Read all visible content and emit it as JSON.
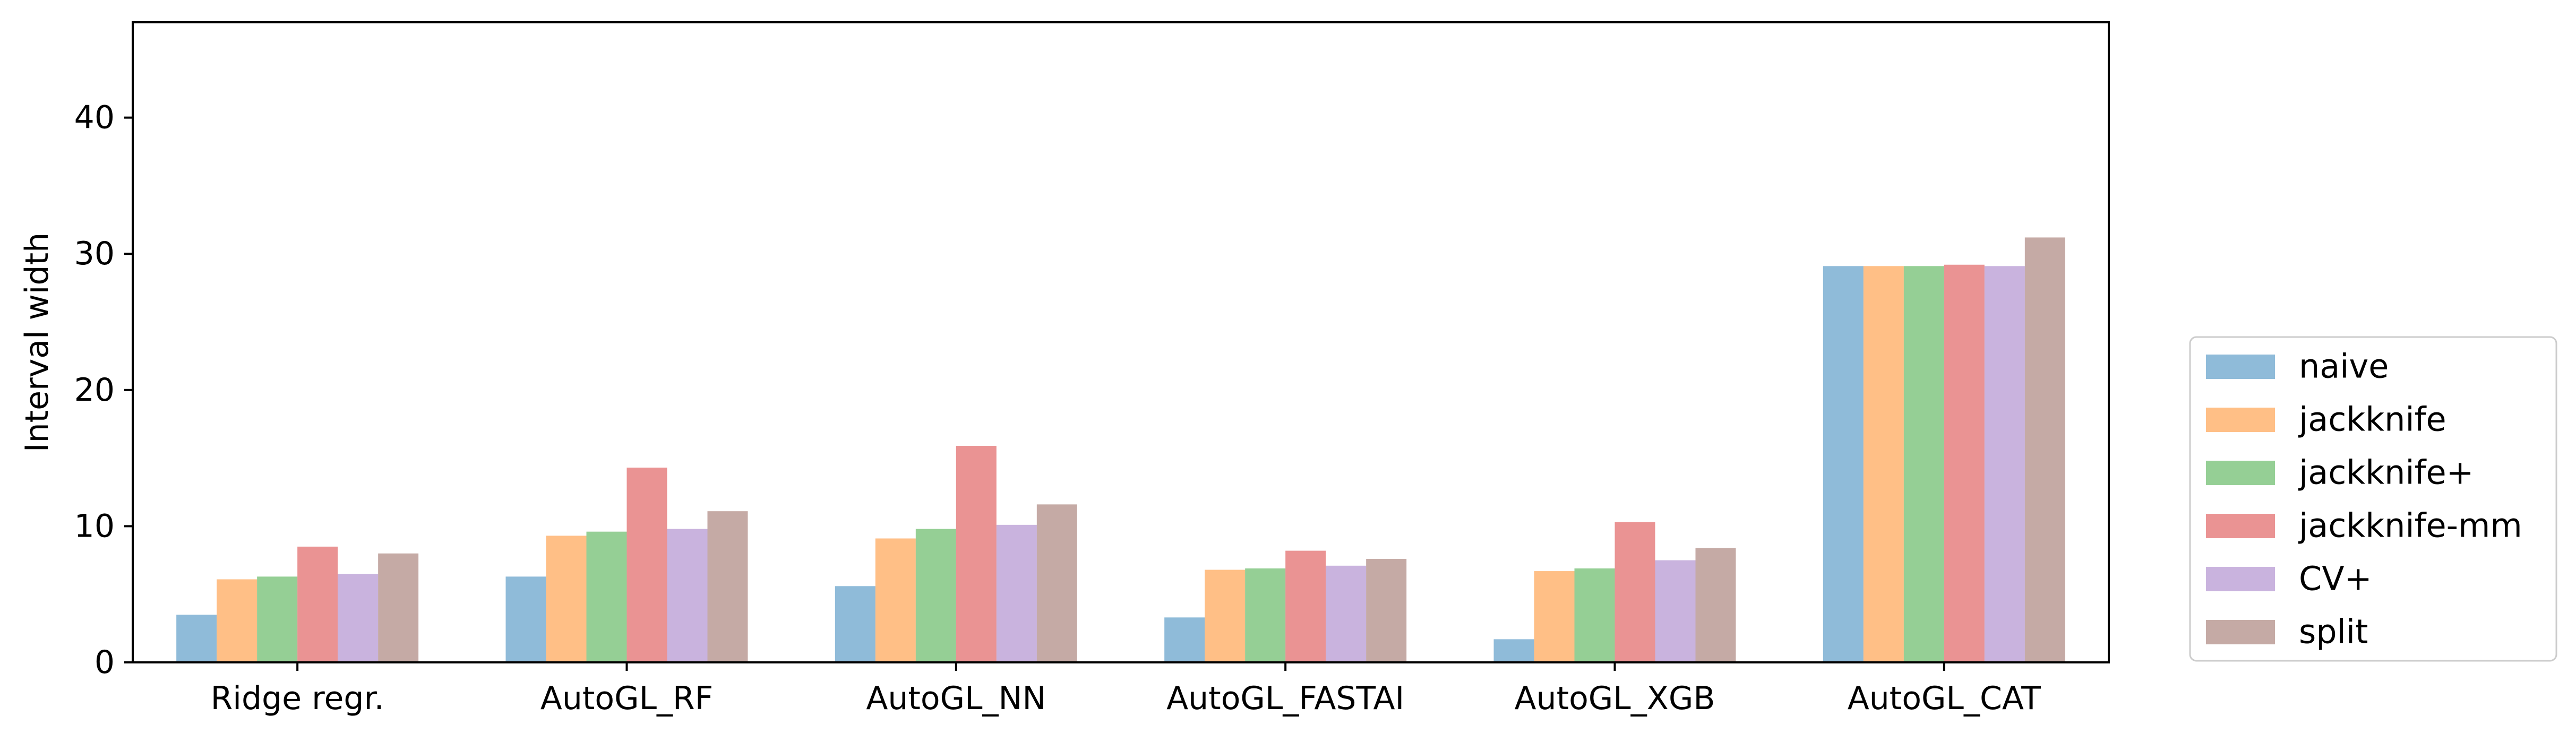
{
  "chart_data": {
    "type": "bar",
    "title": "",
    "xlabel": "",
    "ylabel": "Interval width",
    "ylim": [
      0,
      47
    ],
    "yticks": [
      0,
      10,
      20,
      30,
      40
    ],
    "grid": false,
    "legend_position": "right",
    "categories": [
      "Ridge regr.",
      "AutoGL_RF",
      "AutoGL_NN",
      "AutoGL_FASTAI",
      "AutoGL_XGB",
      "AutoGL_CAT"
    ],
    "series": [
      {
        "name": "naive",
        "color": "#1f77b4",
        "values": [
          3.5,
          6.3,
          5.6,
          3.3,
          1.7,
          29.1
        ]
      },
      {
        "name": "jackknife",
        "color": "#ff7f0e",
        "values": [
          6.1,
          9.3,
          9.1,
          6.8,
          6.7,
          29.1
        ]
      },
      {
        "name": "jackknife+",
        "color": "#2ca02c",
        "values": [
          6.3,
          9.6,
          9.8,
          6.9,
          6.9,
          29.1
        ]
      },
      {
        "name": "jackknife-mm",
        "color": "#d62728",
        "values": [
          8.5,
          14.3,
          15.9,
          8.2,
          10.3,
          29.2
        ]
      },
      {
        "name": "CV+",
        "color": "#9467bd",
        "values": [
          6.5,
          9.8,
          10.1,
          7.1,
          7.5,
          29.1
        ]
      },
      {
        "name": "split",
        "color": "#8c564b",
        "values": [
          8.0,
          11.1,
          11.6,
          7.6,
          8.4,
          31.2
        ]
      }
    ],
    "bar_alpha": 0.5
  }
}
